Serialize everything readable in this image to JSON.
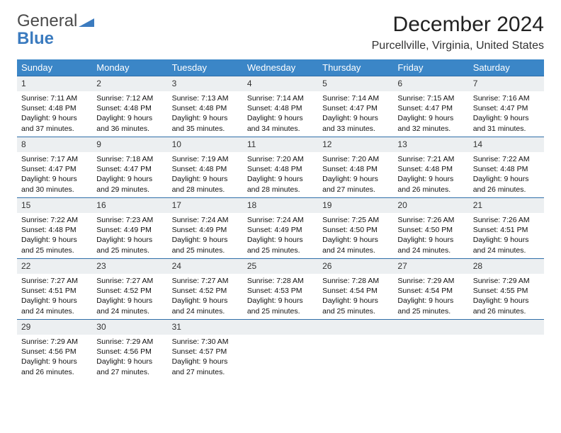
{
  "brand": {
    "line1": "General",
    "line2": "Blue"
  },
  "title": "December 2024",
  "location": "Purcellville, Virginia, United States",
  "colors": {
    "header_bg": "#3b86c7",
    "row_divider": "#2f6ea8",
    "daynum_bg": "#eceff1",
    "brand_gray": "#4a4a4a",
    "brand_blue": "#3b7bbf"
  },
  "dayNames": [
    "Sunday",
    "Monday",
    "Tuesday",
    "Wednesday",
    "Thursday",
    "Friday",
    "Saturday"
  ],
  "weeks": [
    [
      {
        "n": "1",
        "sr": "7:11 AM",
        "ss": "4:48 PM",
        "dl": "9 hours and 37 minutes."
      },
      {
        "n": "2",
        "sr": "7:12 AM",
        "ss": "4:48 PM",
        "dl": "9 hours and 36 minutes."
      },
      {
        "n": "3",
        "sr": "7:13 AM",
        "ss": "4:48 PM",
        "dl": "9 hours and 35 minutes."
      },
      {
        "n": "4",
        "sr": "7:14 AM",
        "ss": "4:48 PM",
        "dl": "9 hours and 34 minutes."
      },
      {
        "n": "5",
        "sr": "7:14 AM",
        "ss": "4:47 PM",
        "dl": "9 hours and 33 minutes."
      },
      {
        "n": "6",
        "sr": "7:15 AM",
        "ss": "4:47 PM",
        "dl": "9 hours and 32 minutes."
      },
      {
        "n": "7",
        "sr": "7:16 AM",
        "ss": "4:47 PM",
        "dl": "9 hours and 31 minutes."
      }
    ],
    [
      {
        "n": "8",
        "sr": "7:17 AM",
        "ss": "4:47 PM",
        "dl": "9 hours and 30 minutes."
      },
      {
        "n": "9",
        "sr": "7:18 AM",
        "ss": "4:47 PM",
        "dl": "9 hours and 29 minutes."
      },
      {
        "n": "10",
        "sr": "7:19 AM",
        "ss": "4:48 PM",
        "dl": "9 hours and 28 minutes."
      },
      {
        "n": "11",
        "sr": "7:20 AM",
        "ss": "4:48 PM",
        "dl": "9 hours and 28 minutes."
      },
      {
        "n": "12",
        "sr": "7:20 AM",
        "ss": "4:48 PM",
        "dl": "9 hours and 27 minutes."
      },
      {
        "n": "13",
        "sr": "7:21 AM",
        "ss": "4:48 PM",
        "dl": "9 hours and 26 minutes."
      },
      {
        "n": "14",
        "sr": "7:22 AM",
        "ss": "4:48 PM",
        "dl": "9 hours and 26 minutes."
      }
    ],
    [
      {
        "n": "15",
        "sr": "7:22 AM",
        "ss": "4:48 PM",
        "dl": "9 hours and 25 minutes."
      },
      {
        "n": "16",
        "sr": "7:23 AM",
        "ss": "4:49 PM",
        "dl": "9 hours and 25 minutes."
      },
      {
        "n": "17",
        "sr": "7:24 AM",
        "ss": "4:49 PM",
        "dl": "9 hours and 25 minutes."
      },
      {
        "n": "18",
        "sr": "7:24 AM",
        "ss": "4:49 PM",
        "dl": "9 hours and 25 minutes."
      },
      {
        "n": "19",
        "sr": "7:25 AM",
        "ss": "4:50 PM",
        "dl": "9 hours and 24 minutes."
      },
      {
        "n": "20",
        "sr": "7:26 AM",
        "ss": "4:50 PM",
        "dl": "9 hours and 24 minutes."
      },
      {
        "n": "21",
        "sr": "7:26 AM",
        "ss": "4:51 PM",
        "dl": "9 hours and 24 minutes."
      }
    ],
    [
      {
        "n": "22",
        "sr": "7:27 AM",
        "ss": "4:51 PM",
        "dl": "9 hours and 24 minutes."
      },
      {
        "n": "23",
        "sr": "7:27 AM",
        "ss": "4:52 PM",
        "dl": "9 hours and 24 minutes."
      },
      {
        "n": "24",
        "sr": "7:27 AM",
        "ss": "4:52 PM",
        "dl": "9 hours and 24 minutes."
      },
      {
        "n": "25",
        "sr": "7:28 AM",
        "ss": "4:53 PM",
        "dl": "9 hours and 25 minutes."
      },
      {
        "n": "26",
        "sr": "7:28 AM",
        "ss": "4:54 PM",
        "dl": "9 hours and 25 minutes."
      },
      {
        "n": "27",
        "sr": "7:29 AM",
        "ss": "4:54 PM",
        "dl": "9 hours and 25 minutes."
      },
      {
        "n": "28",
        "sr": "7:29 AM",
        "ss": "4:55 PM",
        "dl": "9 hours and 26 minutes."
      }
    ],
    [
      {
        "n": "29",
        "sr": "7:29 AM",
        "ss": "4:56 PM",
        "dl": "9 hours and 26 minutes."
      },
      {
        "n": "30",
        "sr": "7:29 AM",
        "ss": "4:56 PM",
        "dl": "9 hours and 27 minutes."
      },
      {
        "n": "31",
        "sr": "7:30 AM",
        "ss": "4:57 PM",
        "dl": "9 hours and 27 minutes."
      },
      null,
      null,
      null,
      null
    ]
  ],
  "labels": {
    "sunrise": "Sunrise:",
    "sunset": "Sunset:",
    "daylight": "Daylight:"
  }
}
